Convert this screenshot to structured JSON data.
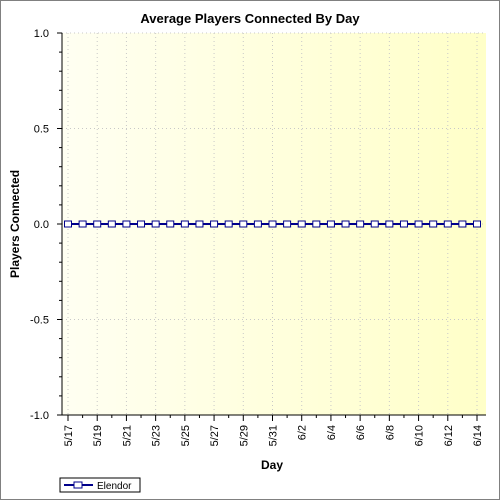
{
  "chart_data": {
    "type": "line",
    "title": "Average Players Connected By Day",
    "xlabel": "Day",
    "ylabel": "Players Connected",
    "ylim": [
      -1.0,
      1.0
    ],
    "yticks": [
      "1.0",
      "0.5",
      "0.0",
      "-0.5",
      "-1.0"
    ],
    "ytick_values": [
      1.0,
      0.5,
      0.0,
      -0.5,
      -1.0
    ],
    "categories": [
      "5/17",
      "5/18",
      "5/19",
      "5/20",
      "5/21",
      "5/22",
      "5/23",
      "5/24",
      "5/25",
      "5/26",
      "5/27",
      "5/28",
      "5/29",
      "5/30",
      "5/31",
      "6/1",
      "6/2",
      "6/3",
      "6/4",
      "6/5",
      "6/6",
      "6/7",
      "6/8",
      "6/9",
      "6/10",
      "6/11",
      "6/12",
      "6/13",
      "6/14"
    ],
    "xtick_labels": [
      "5/17",
      "5/19",
      "5/21",
      "5/23",
      "5/25",
      "5/27",
      "5/29",
      "5/31",
      "6/2",
      "6/4",
      "6/6",
      "6/8",
      "6/10",
      "6/12",
      "6/14"
    ],
    "series": [
      {
        "name": "Elendor",
        "color": "#00008b",
        "values": [
          0,
          0,
          0,
          0,
          0,
          0,
          0,
          0,
          0,
          0,
          0,
          0,
          0,
          0,
          0,
          0,
          0,
          0,
          0,
          0,
          0,
          0,
          0,
          0,
          0,
          0,
          0,
          0,
          0
        ]
      }
    ],
    "legend_position": "bottom-left",
    "grid": true,
    "background_gradient": [
      "#fffff0",
      "#ffffcc"
    ]
  }
}
